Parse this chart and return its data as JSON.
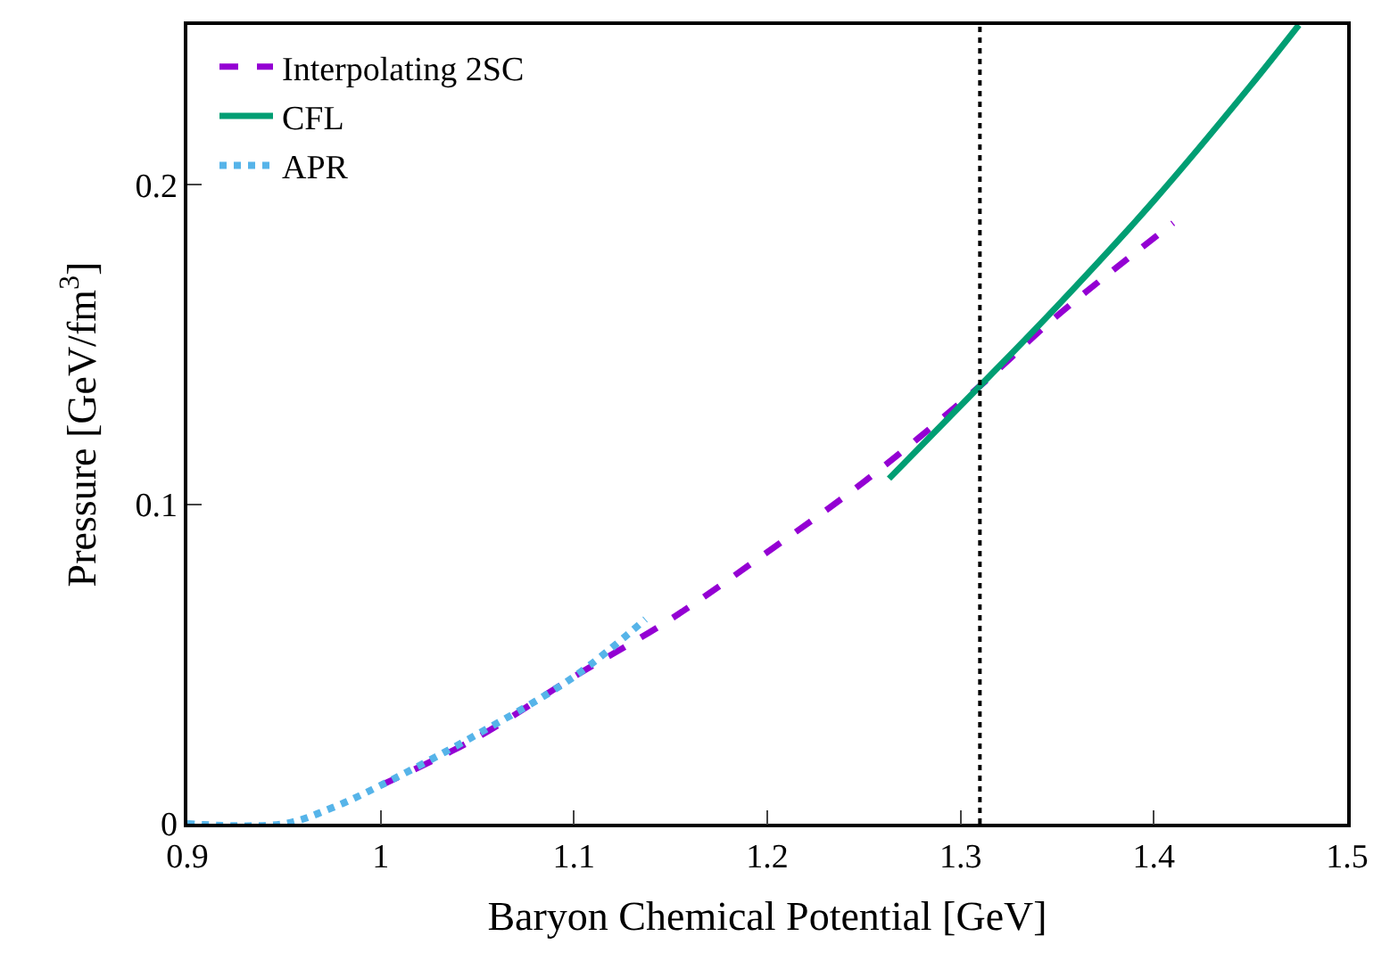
{
  "chart_data": {
    "type": "line",
    "xlabel": "Baryon Chemical Potential [GeV]",
    "ylabel": "Pressure [GeV/fm$^{3}$]",
    "xlim": [
      0.9,
      1.5
    ],
    "xticks": [
      0.9,
      1,
      1.1,
      1.2,
      1.3,
      1.4,
      1.5
    ],
    "ylim": [
      0,
      0.25
    ],
    "yticks": [
      0,
      0.1,
      0.2
    ],
    "legend": "top left",
    "marker": "none",
    "series": [
      {
        "name": "Interpolating 2SC",
        "color": "#9400d3",
        "line_style": "dashed",
        "x": [
          1.0,
          1.05,
          1.1,
          1.15,
          1.2,
          1.25,
          1.31,
          1.35,
          1.41
        ],
        "values": [
          0.012,
          0.027,
          0.046,
          0.064,
          0.085,
          0.107,
          0.137,
          0.159,
          0.188
        ]
      },
      {
        "name": "CFL",
        "color": "#009e73",
        "line_style": "solid",
        "x": [
          1.263,
          1.31,
          1.35,
          1.4,
          1.45,
          1.475
        ],
        "values": [
          0.108,
          0.137,
          0.162,
          0.195,
          0.231,
          0.25
        ]
      },
      {
        "name": "APR",
        "color": "#56b4e9",
        "line_style": "dotted",
        "x": [
          0.9,
          0.95,
          0.975,
          1.0,
          1.05,
          1.1,
          1.137
        ],
        "values": [
          0,
          0,
          0.005,
          0.012,
          0.028,
          0.046,
          0.064
        ]
      }
    ],
    "ref_lines": [
      {
        "axis": "x",
        "value": 1.31,
        "color": "#000000",
        "line_style": "dotted"
      }
    ]
  }
}
